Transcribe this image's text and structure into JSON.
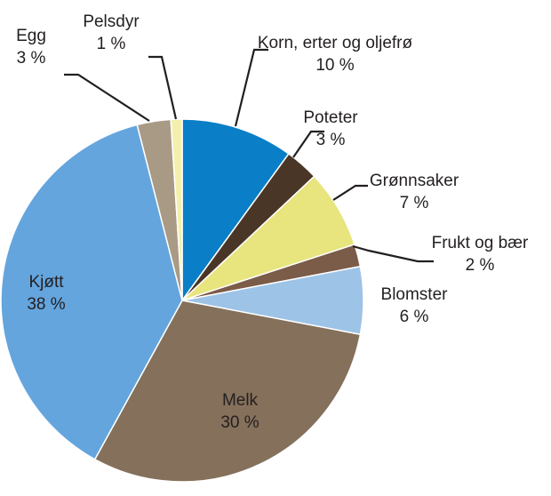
{
  "chart_data": {
    "type": "pie",
    "title": "",
    "start_angle_deg": 0,
    "direction": "clockwise",
    "slices": [
      {
        "label": "Korn, erter og oljefrø",
        "value": 10,
        "value_label": "10 %",
        "color": "#0a7ec6"
      },
      {
        "label": "Poteter",
        "value": 3,
        "value_label": "3 %",
        "color": "#4a3626"
      },
      {
        "label": "Grønnsaker",
        "value": 7,
        "value_label": "7 %",
        "color": "#e8e47e"
      },
      {
        "label": "Frukt og bær",
        "value": 2,
        "value_label": "2 %",
        "color": "#7b5c48"
      },
      {
        "label": "Blomster",
        "value": 6,
        "value_label": "6 %",
        "color": "#9dc3e6"
      },
      {
        "label": "Melk",
        "value": 30,
        "value_label": "30 %",
        "color": "#84705b"
      },
      {
        "label": "Kjøtt",
        "value": 38,
        "value_label": "38 %",
        "color": "#64a5de"
      },
      {
        "label": "Egg",
        "value": 3,
        "value_label": "3 %",
        "color": "#a99a85"
      },
      {
        "label": "Pelsdyr",
        "value": 1,
        "value_label": "1 %",
        "color": "#f3f0ad"
      }
    ]
  }
}
